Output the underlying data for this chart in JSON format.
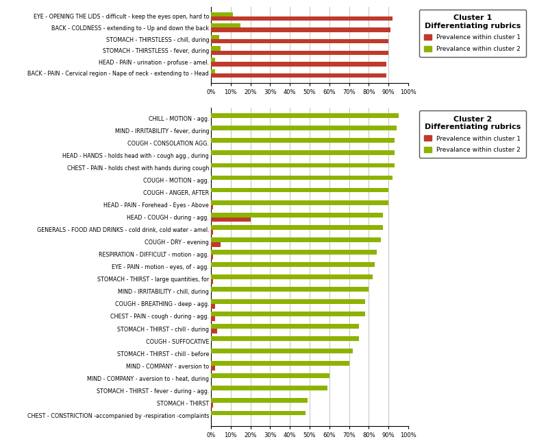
{
  "cluster1": {
    "title": "Cluster 1\nDifferentiating rubrics",
    "labels": [
      "EYE - OPENING THE LIDS - difficult - keep the eyes open, hard to",
      "BACK - COLDNESS - extending to - Up and down the back",
      "STOMACH - THIRSTLESS - chill, during",
      "STOMACH - THIRSTLESS - fever, during",
      "HEAD - PAIN - urination - profuse - amel.",
      "BACK - PAIN - Cervical region - Nape of neck - extending to - Head"
    ],
    "cluster1_vals": [
      0.92,
      0.91,
      0.9,
      0.9,
      0.89,
      0.89
    ],
    "cluster2_vals": [
      0.11,
      0.15,
      0.04,
      0.05,
      0.02,
      0.02
    ]
  },
  "cluster2": {
    "title": "Cluster 2\nDifferentiating rubrics",
    "labels": [
      "CHILL - MOTION - agg.",
      "MIND - IRRITABILITY - fever, during",
      "COUGH - CONSOLATION AGG.",
      "HEAD - HANDS - holds head with - cough agg., during",
      "CHEST - PAIN - holds chest with hands during cough",
      "COUGH - MOTION - agg.",
      "COUGH - ANGER, AFTER",
      "HEAD - PAIN - Forehead - Eyes - Above",
      "HEAD - COUGH - during - agg.",
      "GENERALS - FOOD AND DRINKS - cold drink, cold water - amel.",
      "COUGH - DRY - evening",
      "RESPIRATION - DIFFICULT - motion - agg.",
      "EYE - PAIN - motion - eyes, of - agg.",
      "STOMACH - THIRST - large quantities, for",
      "MIND - IRRITABILITY - chill, during",
      "COUGH - BREATHING - deep - agg.",
      "CHEST - PAIN - cough - during - agg.",
      "STOMACH - THIRST - chill - during",
      "COUGH - SUFFOCATIVE",
      "STOMACH - THIRST - chill - before",
      "MIND - COMPANY - aversion to",
      "MIND - COMPANY - aversion to - heat, during",
      "STOMACH - THIRST - fever - during - agg.",
      "STOMACH - THIRST",
      "CHEST - CONSTRICTION -accompanied by -respiration -complaints"
    ],
    "cluster1_vals": [
      0.0,
      0.0,
      0.0,
      0.0,
      0.0,
      0.0,
      0.0,
      0.01,
      0.2,
      0.01,
      0.05,
      0.01,
      0.0,
      0.01,
      0.0,
      0.02,
      0.02,
      0.03,
      0.0,
      0.0,
      0.02,
      0.0,
      0.0,
      0.01,
      0.0
    ],
    "cluster2_vals": [
      0.95,
      0.94,
      0.93,
      0.93,
      0.93,
      0.92,
      0.9,
      0.9,
      0.87,
      0.87,
      0.86,
      0.84,
      0.83,
      0.82,
      0.8,
      0.78,
      0.78,
      0.75,
      0.75,
      0.72,
      0.7,
      0.6,
      0.59,
      0.49,
      0.48
    ]
  },
  "color_cluster1": "#c0392b",
  "color_cluster2": "#8db300",
  "bar_height": 0.38,
  "xtick_labels": [
    "0%",
    "10%",
    "20%",
    "30%",
    "40%",
    "50%",
    "60%",
    "70%",
    "80%",
    "90%",
    "100%"
  ],
  "xtick_vals": [
    0.0,
    0.1,
    0.2,
    0.3,
    0.4,
    0.5,
    0.6,
    0.7,
    0.8,
    0.9,
    1.0
  ],
  "label_fontsize": 5.8,
  "tick_fontsize": 6.0,
  "legend_title_fontsize": 8.0,
  "legend_fontsize": 6.5
}
